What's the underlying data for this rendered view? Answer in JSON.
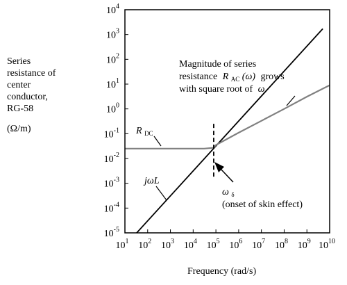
{
  "chart_data": {
    "type": "line",
    "xscale": "log",
    "yscale": "log",
    "xlim": [
      10,
      10000000000
    ],
    "ylim": [
      1e-05,
      10000
    ],
    "ylabel_lines": [
      "Series",
      "resistance  of",
      "center",
      "conductor,",
      "RG-58"
    ],
    "yunit": "(Ω/m)",
    "xlabel": "Frequency (rad/s)",
    "x_ticks": [
      {
        "base": "10",
        "exp": "1"
      },
      {
        "base": "10",
        "exp": "2"
      },
      {
        "base": "10",
        "exp": "3"
      },
      {
        "base": "10",
        "exp": "4"
      },
      {
        "base": "10",
        "exp": "5"
      },
      {
        "base": "10",
        "exp": "6"
      },
      {
        "base": "10",
        "exp": "7"
      },
      {
        "base": "10",
        "exp": "8"
      },
      {
        "base": "10",
        "exp": "9"
      },
      {
        "base": "10",
        "exp": "10"
      }
    ],
    "y_ticks": [
      {
        "base": "10",
        "exp": "-5"
      },
      {
        "base": "10",
        "exp": "-4"
      },
      {
        "base": "10",
        "exp": "-3"
      },
      {
        "base": "10",
        "exp": "-2"
      },
      {
        "base": "10",
        "exp": "-1"
      },
      {
        "base": "10",
        "exp": "0"
      },
      {
        "base": "10",
        "exp": "1"
      },
      {
        "base": "10",
        "exp": "2"
      },
      {
        "base": "10",
        "exp": "3"
      },
      {
        "base": "10",
        "exp": "4"
      }
    ],
    "series": [
      {
        "label_text": "jωL",
        "color": "#000000",
        "x": [
          30,
          5000000000
        ],
        "y": [
          9.1e-06,
          1700
        ]
      },
      {
        "label_text": "RDC / RAC(ω)",
        "color": "#808080",
        "x": [
          10,
          30000,
          80000,
          100000,
          1000000,
          10000000,
          100000000,
          1000000000,
          10000000000
        ],
        "y": [
          0.025,
          0.025,
          0.027,
          0.035,
          0.11,
          0.33,
          1.0,
          3.1,
          9.0
        ]
      }
    ],
    "onset": {
      "x": 80000,
      "y_top": 0.25,
      "y_bottom": 0.0015
    },
    "annotations": {
      "main_lines": [
        "Magnitude of series",
        "resistance",
        "grows",
        "with square root of"
      ],
      "rac_sym": "R",
      "rac_sub": "AC",
      "rac_arg": "(ω)",
      "omega": "ω",
      "rdc_sym": "R",
      "rdc_sub": "DC",
      "jwl": "jωL",
      "skin_sym": "ω",
      "skin_sub": "δ",
      "skin_text": "(onset of skin effect)"
    }
  }
}
